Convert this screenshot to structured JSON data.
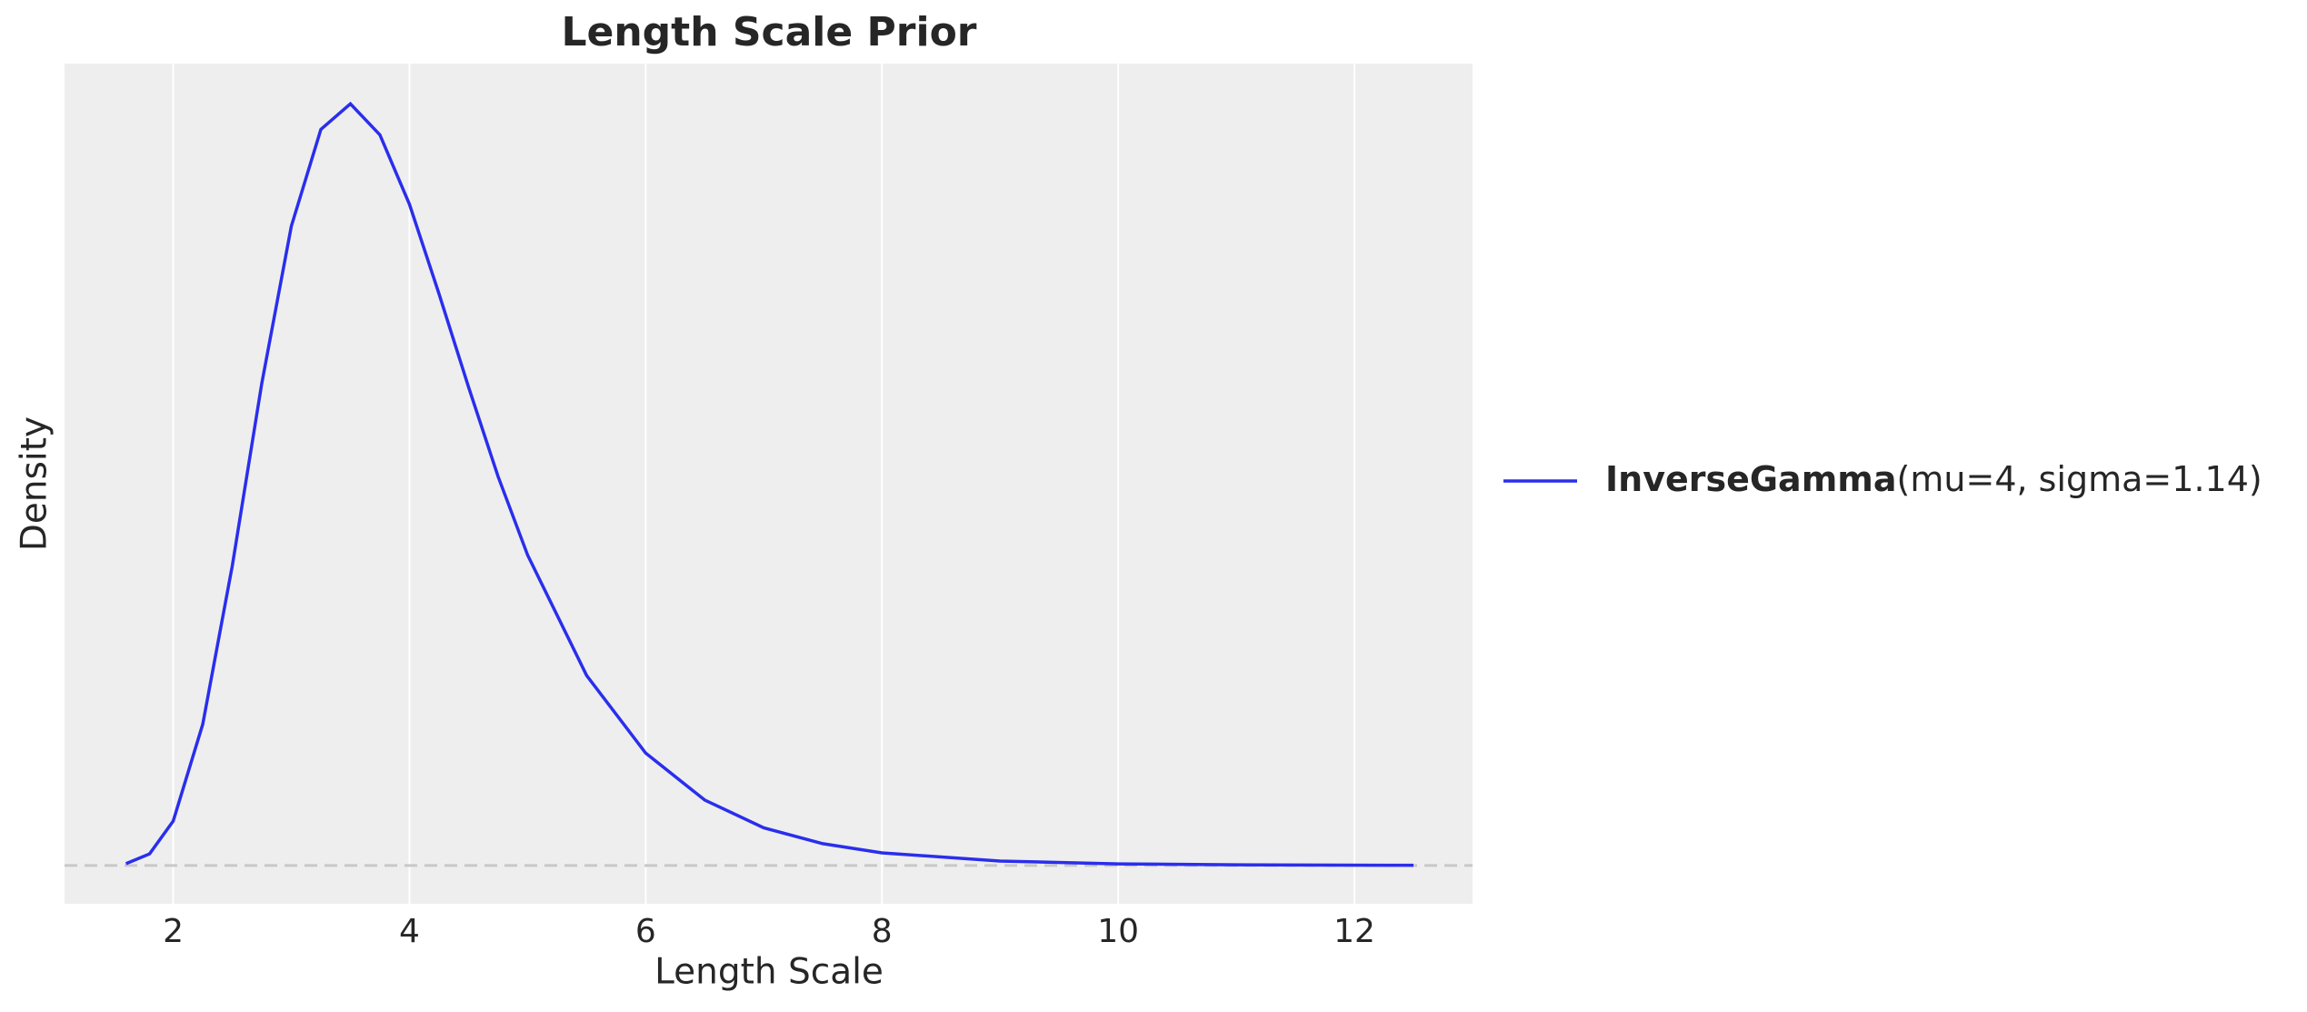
{
  "chart_data": {
    "type": "line",
    "title": "Length Scale Prior",
    "x_label": "Length Scale",
    "y_label": "Density",
    "x": [
      1.6,
      1.8,
      2,
      2.25,
      2.5,
      2.75,
      3,
      3.25,
      3.5,
      3.75,
      4,
      4.25,
      4.5,
      4.75,
      5,
      5.5,
      6,
      6.5,
      7,
      7.5,
      8,
      9,
      10,
      11,
      12.5
    ],
    "series": [
      {
        "name": "InverseGamma(mu=4, sigma=1.14)",
        "color": "#2a2eec",
        "values": [
          0.00095,
          0.00634,
          0.0243,
          0.0773,
          0.164,
          0.264,
          0.35,
          0.403,
          0.417,
          0.4,
          0.362,
          0.313,
          0.262,
          0.213,
          0.17,
          0.104,
          0.0615,
          0.0358,
          0.0206,
          0.0119,
          0.0069,
          0.0024,
          0.00086,
          0.00032,
          8e-05
        ]
      }
    ],
    "xlim": [
      1.08,
      13.0
    ],
    "ylim": [
      -0.021,
      0.439
    ],
    "xticks": [
      2,
      4,
      6,
      8,
      10,
      12
    ],
    "baseline": 0,
    "grid": true,
    "legend": "right"
  }
}
